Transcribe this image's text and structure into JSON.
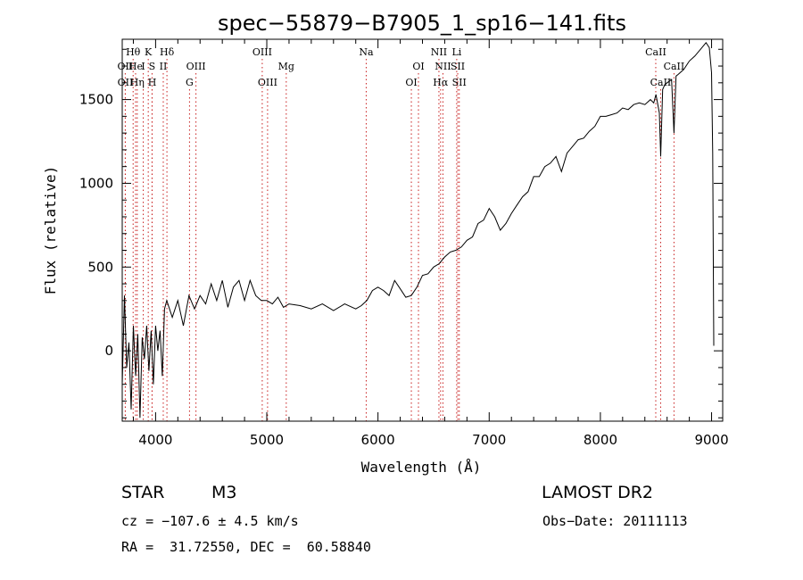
{
  "chart_data": {
    "type": "line",
    "title": "spec−55879−B7905_1_sp16−141.fits",
    "xlabel": "Wavelength (Å)",
    "ylabel": "Flux (relative)",
    "xlim": [
      3700,
      9100
    ],
    "ylim": [
      -420,
      1860
    ],
    "xticks": [
      4000,
      5000,
      6000,
      7000,
      8000,
      9000
    ],
    "yticks": [
      0,
      500,
      1000,
      1500
    ],
    "grid": false,
    "series": [
      {
        "x": [
          3700,
          3720,
          3740,
          3760,
          3780,
          3800,
          3820,
          3840,
          3860,
          3880,
          3900,
          3920,
          3940,
          3960,
          3980,
          4000,
          4020,
          4040,
          4060,
          4080,
          4100,
          4150,
          4200,
          4250,
          4300,
          4350,
          4400,
          4450,
          4500,
          4550,
          4600,
          4650,
          4700,
          4750,
          4800,
          4850,
          4900,
          4950,
          5000,
          5050,
          5100,
          5150,
          5200,
          5300,
          5400,
          5500,
          5600,
          5700,
          5800,
          5850,
          5900,
          5950,
          6000,
          6050,
          6100,
          6150,
          6200,
          6250,
          6300,
          6350,
          6400,
          6450,
          6500,
          6550,
          6600,
          6650,
          6700,
          6750,
          6800,
          6850,
          6900,
          6950,
          7000,
          7050,
          7100,
          7150,
          7200,
          7250,
          7300,
          7350,
          7400,
          7450,
          7500,
          7550,
          7600,
          7650,
          7700,
          7750,
          7800,
          7850,
          7900,
          7950,
          8000,
          8050,
          8100,
          8150,
          8200,
          8250,
          8300,
          8350,
          8400,
          8450,
          8480,
          8500,
          8530,
          8542,
          8560,
          8580,
          8600,
          8640,
          8662,
          8680,
          8700,
          8750,
          8800,
          8850,
          8900,
          8950,
          8980,
          9000,
          9010,
          9020
        ],
        "y": [
          -200,
          330,
          -100,
          50,
          -350,
          150,
          -150,
          100,
          -400,
          80,
          -50,
          150,
          -120,
          120,
          -200,
          150,
          0,
          120,
          -150,
          250,
          300,
          200,
          300,
          150,
          330,
          250,
          330,
          280,
          400,
          300,
          420,
          260,
          380,
          420,
          300,
          420,
          330,
          300,
          300,
          280,
          320,
          260,
          280,
          270,
          250,
          280,
          240,
          280,
          250,
          270,
          300,
          360,
          380,
          360,
          330,
          420,
          370,
          320,
          330,
          380,
          450,
          460,
          500,
          520,
          560,
          590,
          600,
          620,
          660,
          680,
          760,
          780,
          850,
          800,
          720,
          760,
          820,
          870,
          920,
          950,
          1040,
          1040,
          1100,
          1120,
          1160,
          1070,
          1180,
          1220,
          1260,
          1270,
          1310,
          1340,
          1400,
          1400,
          1410,
          1420,
          1450,
          1440,
          1470,
          1480,
          1470,
          1500,
          1480,
          1530,
          1420,
          1160,
          1560,
          1590,
          1600,
          1620,
          1300,
          1640,
          1650,
          1680,
          1730,
          1760,
          1800,
          1840,
          1810,
          1660,
          1180,
          30
        ]
      }
    ],
    "line_markers": [
      {
        "label": "Hθ",
        "x": 3798,
        "row": 0
      },
      {
        "label": "K",
        "x": 3934,
        "row": 0
      },
      {
        "label": "Hδ",
        "x": 4102,
        "row": 0
      },
      {
        "label": "OII",
        "x": 3727,
        "row": 1
      },
      {
        "label": "He",
        "x": 3820,
        "row": 1
      },
      {
        "label": "I",
        "x": 3889,
        "row": 1
      },
      {
        "label": "S",
        "x": 3968,
        "row": 1
      },
      {
        "label": "II",
        "x": 4069,
        "row": 1
      },
      {
        "label": "OII",
        "x": 3728,
        "row": 2
      },
      {
        "label": "Hη",
        "x": 3835,
        "row": 2
      },
      {
        "label": "H",
        "x": 3969,
        "row": 2
      },
      {
        "label": "OIII",
        "x": 4363,
        "row": 1
      },
      {
        "label": "G",
        "x": 4305,
        "row": 2
      },
      {
        "label": "OIII",
        "x": 4959,
        "row": 0
      },
      {
        "label": "OIII",
        "x": 5007,
        "row": 2
      },
      {
        "label": "Mg",
        "x": 5175,
        "row": 1
      },
      {
        "label": "Na",
        "x": 5894,
        "row": 0
      },
      {
        "label": "OI",
        "x": 6364,
        "row": 1
      },
      {
        "label": "OI",
        "x": 6300,
        "row": 2
      },
      {
        "label": "NII",
        "x": 6548,
        "row": 0
      },
      {
        "label": "Li",
        "x": 6708,
        "row": 0
      },
      {
        "label": "NII",
        "x": 6584,
        "row": 1
      },
      {
        "label": "SII",
        "x": 6717,
        "row": 1
      },
      {
        "label": "Hα",
        "x": 6563,
        "row": 2
      },
      {
        "label": "SII",
        "x": 6731,
        "row": 2
      },
      {
        "label": "CaII",
        "x": 8498,
        "row": 0
      },
      {
        "label": "CaII",
        "x": 8662,
        "row": 1
      },
      {
        "label": "CaII",
        "x": 8542,
        "row": 2
      }
    ]
  },
  "info": {
    "class_label": "STAR",
    "subclass": "M3",
    "survey": "LAMOST DR2",
    "redshift": "cz = −107.6 ± 4.5 km/s",
    "obs_date": "Obs−Date: 20111113",
    "coords": "RA =  31.72550, DEC =  60.58840"
  }
}
